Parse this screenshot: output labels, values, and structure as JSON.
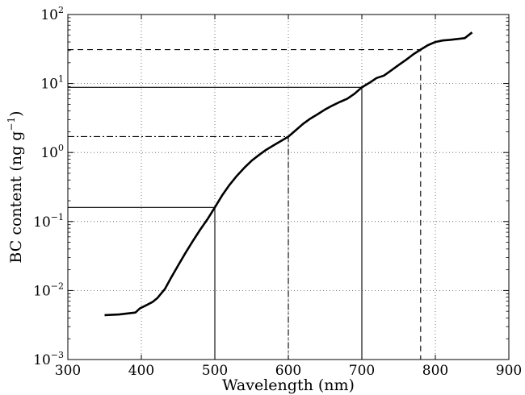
{
  "chart_data": {
    "type": "line",
    "title": "",
    "xlabel": "Wavelength (nm)",
    "ylabel_main": "BC content (ng g",
    "ylabel_sup": "−1",
    "ylabel_close": ")",
    "xlim": [
      300,
      900
    ],
    "ylim": [
      0.001,
      100
    ],
    "yscale": "log",
    "grid": true,
    "x_ticks": [
      300,
      400,
      500,
      600,
      700,
      800,
      900
    ],
    "x_tick_labels": [
      "300",
      "400",
      "500",
      "600",
      "700",
      "800",
      "900"
    ],
    "y_tick_values": [
      0.001,
      0.01,
      0.1,
      1,
      10,
      100
    ],
    "y_tick_base": "10",
    "y_tick_exponents": [
      "−3",
      "−2",
      "−1",
      "0",
      "1",
      "2"
    ],
    "series": [
      {
        "x": [
          350,
          370,
          392,
          398,
          405,
          415,
          422,
          432,
          440,
          450,
          460,
          470,
          480,
          490,
          500,
          510,
          520,
          530,
          540,
          550,
          560,
          570,
          580,
          590,
          600,
          610,
          620,
          630,
          640,
          650,
          660,
          670,
          680,
          690,
          700,
          710,
          720,
          730,
          740,
          750,
          760,
          770,
          780,
          790,
          800,
          810,
          820,
          840,
          850
        ],
        "y": [
          0.0044,
          0.0045,
          0.0048,
          0.0055,
          0.006,
          0.0068,
          0.0078,
          0.0105,
          0.015,
          0.023,
          0.035,
          0.052,
          0.076,
          0.108,
          0.16,
          0.24,
          0.34,
          0.46,
          0.6,
          0.76,
          0.92,
          1.1,
          1.27,
          1.47,
          1.7,
          2.1,
          2.6,
          3.1,
          3.6,
          4.2,
          4.8,
          5.4,
          6.0,
          7.1,
          8.8,
          10.2,
          12.0,
          13.0,
          15.5,
          18.5,
          22.0,
          26.5,
          31.0,
          36.0,
          40.0,
          42.0,
          43.0,
          45.5,
          55.0
        ]
      }
    ],
    "reference_lines": [
      {
        "x": 500,
        "y": 0.16,
        "style": "solid"
      },
      {
        "x": 600,
        "y": 1.7,
        "style": "dashdot"
      },
      {
        "x": 700,
        "y": 8.8,
        "style": "solid"
      },
      {
        "x": 780,
        "y": 31.0,
        "style": "dashed"
      }
    ]
  }
}
